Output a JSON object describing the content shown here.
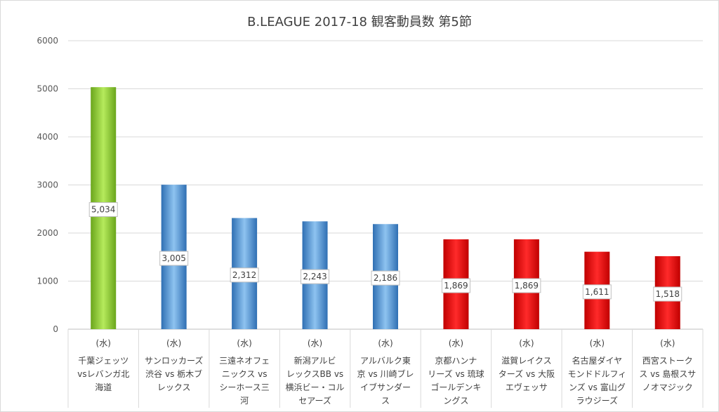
{
  "chart_data": {
    "type": "bar",
    "title": "B.LEAGUE 2017-18 観客動員数 第5節",
    "ylim": [
      0,
      6000
    ],
    "yticks": [
      0,
      1000,
      2000,
      3000,
      4000,
      5000,
      6000
    ],
    "grid": true,
    "categories": [
      {
        "day": "(水)",
        "lines": [
          "千葉ジェッツ",
          "vsレバンガ北",
          "海道"
        ]
      },
      {
        "day": "(水)",
        "lines": [
          "サンロッカーズ",
          "渋谷 vs 栃木ブ",
          "レックス"
        ]
      },
      {
        "day": "(水)",
        "lines": [
          "三遠ネオフェ",
          "ニックス vs",
          "シーホース三",
          "河"
        ]
      },
      {
        "day": "(水)",
        "lines": [
          "新潟アルビ",
          "レックスBB vs",
          "横浜ビー・コル",
          "セアーズ"
        ]
      },
      {
        "day": "(水)",
        "lines": [
          "アルバルク東",
          "京 vs 川崎ブレ",
          "イブサンダー",
          "ス"
        ]
      },
      {
        "day": "(水)",
        "lines": [
          "京都ハンナ",
          "リーズ vs 琉球",
          "ゴールデンキ",
          "ングス"
        ]
      },
      {
        "day": "(水)",
        "lines": [
          "滋賀レイクス",
          "ターズ vs 大阪",
          "エヴェッサ"
        ]
      },
      {
        "day": "(水)",
        "lines": [
          "名古屋ダイヤ",
          "モンドドルフィ",
          "ンズ vs 富山グ",
          "ラウジーズ"
        ]
      },
      {
        "day": "(水)",
        "lines": [
          "西宮ストーク",
          "ス vs 島根スサ",
          "ノオマジック"
        ]
      }
    ],
    "values": [
      5034,
      3005,
      2312,
      2243,
      2186,
      1869,
      1869,
      1611,
      1518
    ],
    "data_labels": [
      "5,034",
      "3,005",
      "2,312",
      "2,243",
      "2,186",
      "1,869",
      "1,869",
      "1,611",
      "1,518"
    ],
    "bar_colors": [
      "green",
      "blue",
      "blue",
      "blue",
      "blue",
      "red",
      "red",
      "red",
      "red"
    ],
    "palette": {
      "green": [
        "#6aa51c",
        "#b5ea5c",
        "#6aa51c"
      ],
      "blue": [
        "#2f6fb3",
        "#8ec3f0",
        "#2f6fb3"
      ],
      "red": [
        "#c00000",
        "#ff2a2a",
        "#c00000"
      ],
      "grid": "#d9d9d9",
      "axis": "#bfbfbf"
    }
  }
}
